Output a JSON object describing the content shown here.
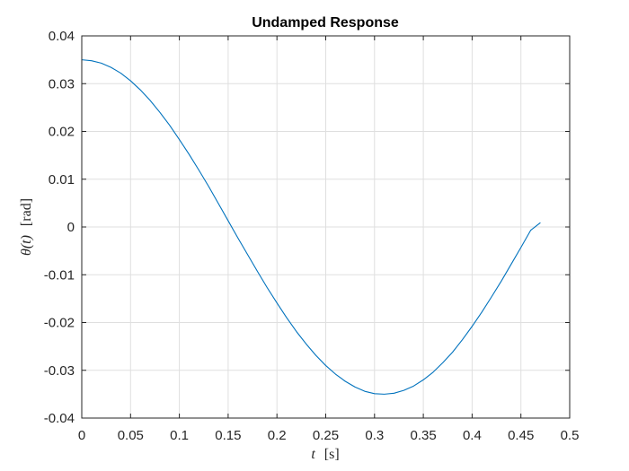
{
  "chart_data": {
    "type": "line",
    "title": "Undamped Response",
    "xlabel": {
      "var": "t",
      "unit": "[s]"
    },
    "ylabel": {
      "var": "θ(t)",
      "unit": "[rad]"
    },
    "xlim": [
      0,
      0.5
    ],
    "ylim": [
      -0.04,
      0.04
    ],
    "xticks": [
      "0",
      "0.05",
      "0.1",
      "0.15",
      "0.2",
      "0.25",
      "0.3",
      "0.35",
      "0.4",
      "0.45",
      "0.5"
    ],
    "xtick_values": [
      0,
      0.05,
      0.1,
      0.15,
      0.2,
      0.25,
      0.3,
      0.35,
      0.4,
      0.45,
      0.5
    ],
    "yticks": [
      "-0.04",
      "-0.03",
      "-0.02",
      "-0.01",
      "0",
      "0.01",
      "0.02",
      "0.03",
      "0.04"
    ],
    "ytick_values": [
      -0.04,
      -0.03,
      -0.02,
      -0.01,
      0,
      0.01,
      0.02,
      0.03,
      0.04
    ],
    "grid": true,
    "series": [
      {
        "color": "#0072BD",
        "x": [
          0,
          0.01,
          0.02,
          0.03,
          0.04,
          0.05,
          0.06,
          0.07,
          0.08,
          0.09,
          0.1,
          0.11,
          0.12,
          0.13,
          0.14,
          0.15,
          0.16,
          0.17,
          0.18,
          0.19,
          0.2,
          0.21,
          0.22,
          0.23,
          0.24,
          0.25,
          0.26,
          0.27,
          0.28,
          0.29,
          0.3,
          0.31,
          0.32,
          0.33,
          0.34,
          0.35,
          0.36,
          0.37,
          0.38,
          0.39,
          0.4,
          0.41,
          0.42,
          0.43,
          0.44,
          0.45,
          0.46,
          0.47
        ],
        "y": [
          0.035,
          0.0348,
          0.0343,
          0.0334,
          0.0322,
          0.0306,
          0.0287,
          0.0265,
          0.024,
          0.0213,
          0.0183,
          0.0152,
          0.0119,
          0.0085,
          0.0049,
          0.0013,
          -0.0023,
          -0.0058,
          -0.0093,
          -0.0127,
          -0.0159,
          -0.019,
          -0.0219,
          -0.0245,
          -0.0269,
          -0.029,
          -0.0308,
          -0.0323,
          -0.0335,
          -0.0344,
          -0.0349,
          -0.035,
          -0.0348,
          -0.0342,
          -0.0333,
          -0.032,
          -0.0304,
          -0.0284,
          -0.0262,
          -0.0236,
          -0.0208,
          -0.0178,
          -0.0146,
          -0.0113,
          -0.0078,
          -0.0043,
          -0.0007,
          0.0009
        ]
      }
    ]
  }
}
